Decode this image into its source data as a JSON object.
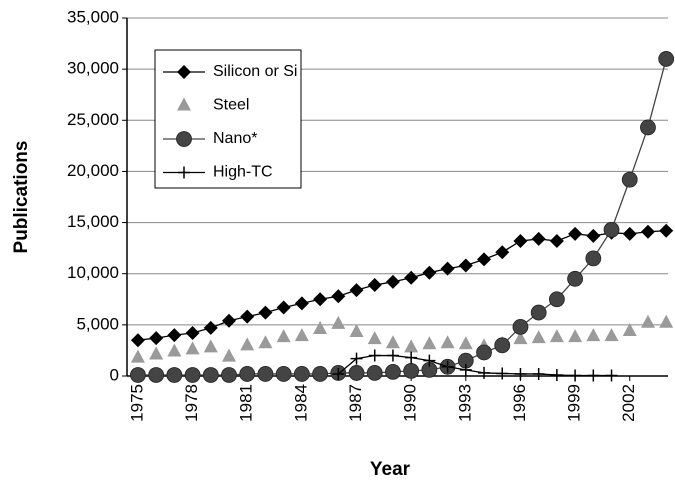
{
  "chart_data": {
    "type": "line",
    "x": [
      1975,
      1976,
      1977,
      1978,
      1979,
      1980,
      1981,
      1982,
      1983,
      1984,
      1985,
      1986,
      1987,
      1988,
      1989,
      1990,
      1991,
      1992,
      1993,
      1994,
      1995,
      1996,
      1997,
      1998,
      1999,
      2000,
      2001,
      2002,
      2003,
      2004
    ],
    "xlim": [
      1974.4,
      2004.1
    ],
    "xticks": [
      1975,
      1978,
      1981,
      1984,
      1987,
      1990,
      1993,
      1996,
      1999,
      2002
    ],
    "ylim": [
      0,
      35000
    ],
    "yticks": [
      0,
      {
        "value": 5000,
        "label": "5,000"
      },
      {
        "value": 10000,
        "label": "10,000"
      },
      {
        "value": 15000,
        "label": "15,000"
      },
      {
        "value": 20000,
        "label": "20,000"
      },
      {
        "value": 25000,
        "label": "25,000"
      },
      {
        "value": 30000,
        "label": "30,000"
      },
      {
        "value": 35000,
        "label": "35,000"
      }
    ],
    "xlabel": "Year",
    "ylabel": "Publications",
    "grid": true,
    "legend": "upper left",
    "series": [
      {
        "name": "Silicon or Si",
        "color": "#000000",
        "marker": "diamond",
        "line": true,
        "values": [
          3500,
          3700,
          4000,
          4200,
          4700,
          5400,
          5800,
          6200,
          6700,
          7100,
          7500,
          7800,
          8400,
          8900,
          9200,
          9600,
          10100,
          10500,
          10800,
          11400,
          12100,
          13200,
          13400,
          13200,
          13900,
          13700,
          14000,
          13900,
          14100,
          14200
        ]
      },
      {
        "name": "Steel",
        "color": "#9a9a9a",
        "marker": "triangle",
        "line": false,
        "values": [
          1800,
          2100,
          2400,
          2600,
          2800,
          1900,
          3000,
          3200,
          3800,
          3900,
          4600,
          5100,
          4300,
          3600,
          3200,
          2800,
          3100,
          3200,
          3100,
          2900,
          3100,
          3600,
          3700,
          3800,
          3800,
          3900,
          3900,
          4400,
          5200,
          5200
        ]
      },
      {
        "name": "Nano*",
        "color": "#444444",
        "marker": "circle",
        "line": true,
        "values": [
          100,
          100,
          100,
          100,
          100,
          100,
          200,
          200,
          200,
          200,
          200,
          300,
          300,
          300,
          400,
          500,
          600,
          900,
          1500,
          2300,
          3000,
          4800,
          6200,
          7500,
          9500,
          11500,
          14300,
          19200,
          24300,
          31000
        ]
      },
      {
        "name": "High-TC",
        "color": "#000000",
        "marker": "plus",
        "line": true,
        "values": [
          null,
          null,
          null,
          null,
          null,
          null,
          null,
          null,
          null,
          null,
          null,
          200,
          1700,
          2000,
          2000,
          1800,
          1500,
          900,
          600,
          300,
          250,
          200,
          200,
          100,
          50,
          50,
          50,
          null,
          null,
          null
        ]
      }
    ]
  }
}
